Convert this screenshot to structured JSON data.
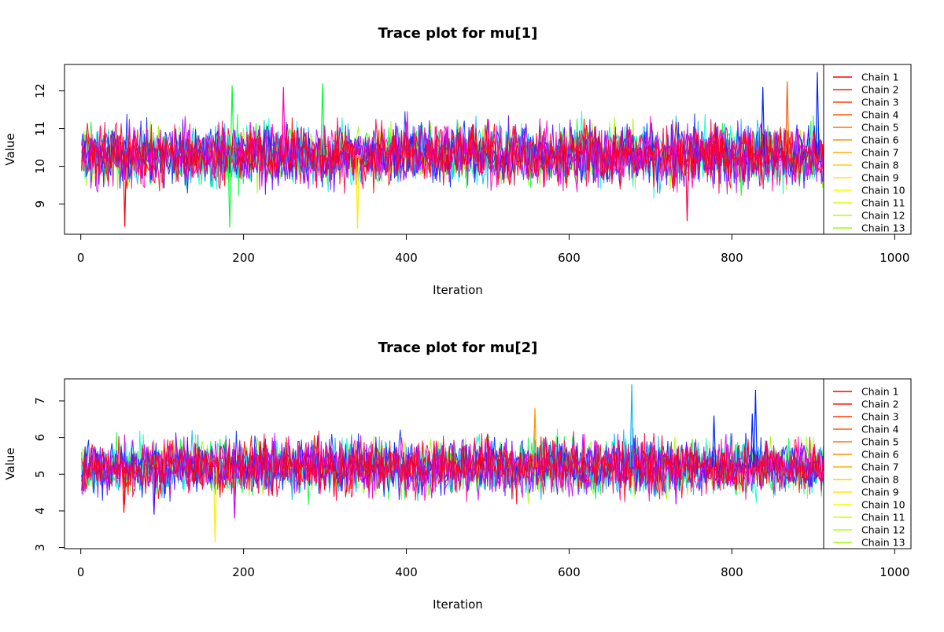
{
  "chart_data": [
    {
      "type": "line",
      "title": "Trace plot for mu[1]",
      "xlabel": "Iteration",
      "ylabel": "Value",
      "xlim": [
        -20,
        1020
      ],
      "ylim": [
        8.2,
        12.7
      ],
      "x_ticks": [
        "0",
        "200",
        "400",
        "600",
        "800",
        "1000"
      ],
      "y_ticks": [
        "9",
        "10",
        "11",
        "12"
      ],
      "x_range": [
        1,
        1000
      ],
      "center": 10.3,
      "spread": 0.38,
      "seed": 17,
      "grid": false,
      "legend_position": "right",
      "series": [
        {
          "name": "Chain 1",
          "color": "#ff0000"
        },
        {
          "name": "Chain 2",
          "color": "#ff1d00"
        },
        {
          "name": "Chain 3",
          "color": "#ff3b00"
        },
        {
          "name": "Chain 4",
          "color": "#ff5800"
        },
        {
          "name": "Chain 5",
          "color": "#ff7600"
        },
        {
          "name": "Chain 6",
          "color": "#ff9300"
        },
        {
          "name": "Chain 7",
          "color": "#ffb100"
        },
        {
          "name": "Chain 8",
          "color": "#ffce00"
        },
        {
          "name": "Chain 9",
          "color": "#ffeb00"
        },
        {
          "name": "Chain 10",
          "color": "#f4ff00"
        },
        {
          "name": "Chain 11",
          "color": "#d7ff00"
        },
        {
          "name": "Chain 12",
          "color": "#b9ff00"
        },
        {
          "name": "Chain 13",
          "color": "#9cff00"
        }
      ],
      "trace_colors": [
        "#9cff00",
        "#00ff33",
        "#00ffd0",
        "#00b7ff",
        "#0026ff",
        "#5900ff",
        "#c300ff",
        "#ff00b5",
        "#ff0048",
        "#ff0000"
      ],
      "spikes": [
        {
          "x": 905,
          "y": 12.5,
          "color": "#0026ff"
        },
        {
          "x": 868,
          "y": 12.25,
          "color": "#ff5800"
        },
        {
          "x": 186,
          "y": 12.15,
          "color": "#00ff33"
        },
        {
          "x": 297,
          "y": 12.2,
          "color": "#00ff33"
        },
        {
          "x": 54,
          "y": 8.4,
          "color": "#ff0000"
        },
        {
          "x": 340,
          "y": 8.35,
          "color": "#ffeb00"
        },
        {
          "x": 183,
          "y": 8.38,
          "color": "#00ff33"
        },
        {
          "x": 745,
          "y": 8.55,
          "color": "#ff0048"
        },
        {
          "x": 249,
          "y": 12.1,
          "color": "#ff00b5"
        },
        {
          "x": 838,
          "y": 12.1,
          "color": "#0026ff"
        }
      ]
    },
    {
      "type": "line",
      "title": "Trace plot for mu[2]",
      "xlabel": "Iteration",
      "ylabel": "Value",
      "xlim": [
        -20,
        1020
      ],
      "ylim": [
        2.97,
        7.6
      ],
      "x_ticks": [
        "0",
        "200",
        "400",
        "600",
        "800",
        "1000"
      ],
      "y_ticks": [
        "3",
        "4",
        "5",
        "6",
        "7"
      ],
      "x_range": [
        1,
        1000
      ],
      "center": 5.2,
      "spread": 0.36,
      "seed": 91,
      "grid": false,
      "legend_position": "right",
      "series": [
        {
          "name": "Chain 1",
          "color": "#ff0000"
        },
        {
          "name": "Chain 2",
          "color": "#ff1d00"
        },
        {
          "name": "Chain 3",
          "color": "#ff3b00"
        },
        {
          "name": "Chain 4",
          "color": "#ff5800"
        },
        {
          "name": "Chain 5",
          "color": "#ff7600"
        },
        {
          "name": "Chain 6",
          "color": "#ff9300"
        },
        {
          "name": "Chain 7",
          "color": "#ffb100"
        },
        {
          "name": "Chain 8",
          "color": "#ffce00"
        },
        {
          "name": "Chain 9",
          "color": "#ffeb00"
        },
        {
          "name": "Chain 10",
          "color": "#f4ff00"
        },
        {
          "name": "Chain 11",
          "color": "#d7ff00"
        },
        {
          "name": "Chain 12",
          "color": "#b9ff00"
        },
        {
          "name": "Chain 13",
          "color": "#9cff00"
        }
      ],
      "trace_colors": [
        "#9cff00",
        "#00ff33",
        "#00ffd0",
        "#00b7ff",
        "#0026ff",
        "#5900ff",
        "#c300ff",
        "#ff00b5",
        "#ff0048",
        "#ff0000"
      ],
      "spikes": [
        {
          "x": 677,
          "y": 7.45,
          "color": "#00b7ff"
        },
        {
          "x": 829,
          "y": 7.3,
          "color": "#0026ff"
        },
        {
          "x": 165,
          "y": 3.15,
          "color": "#ffeb00"
        },
        {
          "x": 558,
          "y": 6.8,
          "color": "#ff9300"
        },
        {
          "x": 778,
          "y": 6.6,
          "color": "#0026ff"
        },
        {
          "x": 825,
          "y": 6.65,
          "color": "#0026ff"
        },
        {
          "x": 90,
          "y": 3.9,
          "color": "#5900ff"
        },
        {
          "x": 189,
          "y": 3.8,
          "color": "#c300ff"
        },
        {
          "x": 53,
          "y": 3.95,
          "color": "#ff0000"
        }
      ]
    }
  ]
}
